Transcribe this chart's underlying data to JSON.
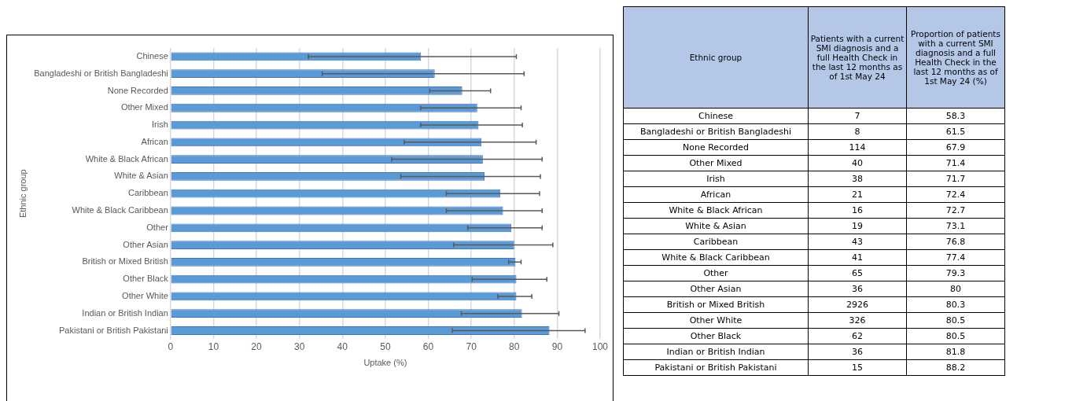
{
  "chart_data": [
    {
      "type": "bar",
      "orientation": "horizontal",
      "xlabel": "Uptake (%)",
      "ylabel": "Ethnic group",
      "categories": [
        "Chinese",
        "Bangladeshi or British Bangladeshi",
        "None Recorded",
        "Other Mixed",
        "Irish",
        "African",
        "White & Black African",
        "White & Asian",
        "Caribbean",
        "White & Black Caribbean",
        "Other",
        "Other Asian",
        "British or Mixed British",
        "Other Black",
        "Other White",
        "Indian or British Indian",
        "Pakistani or British Pakistani"
      ],
      "series": [
        {
          "color": "#5b9bd5",
          "values": [
            58.3,
            61.5,
            67.9,
            71.4,
            71.7,
            72.4,
            72.7,
            73.1,
            76.8,
            77.4,
            79.3,
            80,
            80.3,
            80.5,
            80.5,
            81.8,
            88.2
          ],
          "errors": [
            [
              32.1,
              80.5
            ],
            [
              35.3,
              82.3
            ],
            [
              60.3,
              74.5
            ],
            [
              58.2,
              81.6
            ],
            [
              58.2,
              81.9
            ],
            [
              54.4,
              85.1
            ],
            [
              51.5,
              86.5
            ],
            [
              53.6,
              86.1
            ],
            [
              64.2,
              85.9
            ],
            [
              64.2,
              86.5
            ],
            [
              69.2,
              86.5
            ],
            [
              65.9,
              89.0
            ],
            [
              78.7,
              81.6
            ],
            [
              70.2,
              87.6
            ],
            [
              76.2,
              84.1
            ],
            [
              67.7,
              90.4
            ],
            [
              65.6,
              96.5
            ]
          ]
        }
      ],
      "xlim": [
        0,
        100
      ],
      "xticks": [
        0,
        10,
        20,
        30,
        40,
        50,
        60,
        70,
        80,
        90,
        100
      ],
      "grid": "x",
      "legend": false
    },
    {
      "type": "other",
      "ylabel": "Ethnic group",
      "data_labels": true,
      "categories": [
        "Chinese",
        "Bangladeshi or British Bangladeshi",
        "None Recorded",
        "Other Mixed",
        "Irish",
        "African",
        "White & Black African",
        "White & Asian",
        "Caribbean",
        "White & Black Caribbean",
        "Other",
        "Other Asian",
        "British or Mixed British",
        "Other White",
        "Other Black",
        "Indian or British Indian",
        "Pakistani or British Pakistani"
      ],
      "series": [
        {
          "name": "Patients with a current SMI diagnosis and a full Health Check in the last 12 months as of 1st May 24",
          "values": [
            7,
            8,
            114,
            40,
            38,
            21,
            16,
            19,
            43,
            41,
            65,
            36,
            2926,
            326,
            62,
            36,
            15
          ]
        },
        {
          "name": "Proportion of patients with a current SMI diagnosis and a full Health Check in the last 12 months as of 1st May 24 (%)",
          "values": [
            58.3,
            61.5,
            67.9,
            71.4,
            71.7,
            72.4,
            72.7,
            73.1,
            76.8,
            77.4,
            79.3,
            80,
            80.3,
            80.5,
            80.5,
            81.8,
            88.2
          ]
        }
      ]
    }
  ]
}
